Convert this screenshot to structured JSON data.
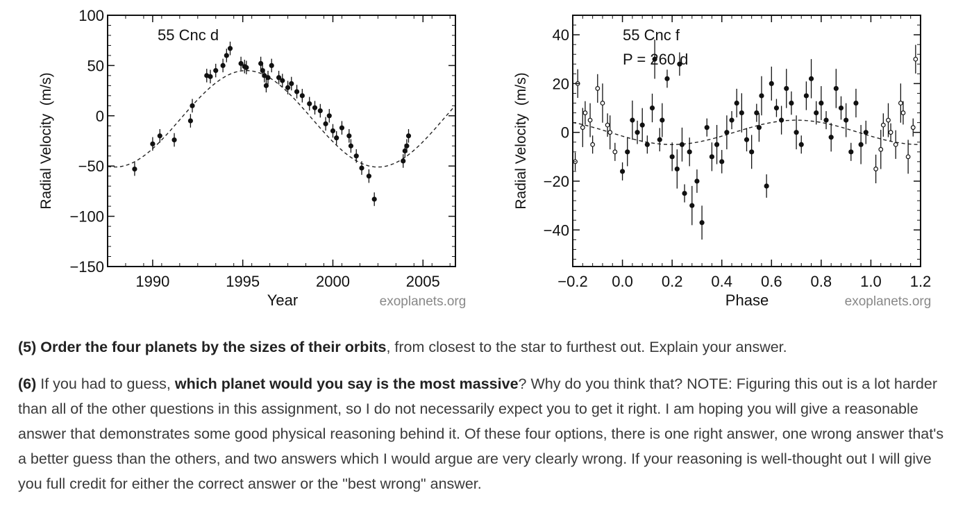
{
  "chart_data": [
    {
      "type": "scatter",
      "title": "55 Cnc d",
      "xlabel": "Year",
      "ylabel": "Radial Velocity  (m/s)",
      "xlim": [
        1987.5,
        2006.8
      ],
      "ylim": [
        -150,
        100
      ],
      "xticks": [
        1990,
        1995,
        2000,
        2005
      ],
      "xtick_labels": [
        "1990",
        "1995",
        "2000",
        "2005"
      ],
      "yticks": [
        100,
        50,
        0,
        -50,
        -100,
        -150
      ],
      "ytick_labels": [
        "100",
        "50",
        "0",
        "−50",
        "−100",
        "−150"
      ],
      "credit": "exoplanets.org",
      "model": {
        "type": "sinusoid",
        "amplitude": 48,
        "offset": -3,
        "period_years": 14.6,
        "peak_year": 1995.2,
        "style": "dashed"
      },
      "series": [
        {
          "name": "observations",
          "x": [
            1989.0,
            1990.0,
            1990.4,
            1991.2,
            1992.1,
            1992.2,
            1993.0,
            1993.2,
            1993.5,
            1993.9,
            1994.1,
            1994.3,
            1994.9,
            1995.1,
            1995.2,
            1996.0,
            1996.1,
            1996.2,
            1996.3,
            1996.4,
            1996.6,
            1997.0,
            1997.2,
            1997.5,
            1997.7,
            1998.0,
            1998.3,
            1998.7,
            1999.0,
            1999.3,
            1999.6,
            1999.8,
            2000.0,
            2000.2,
            2000.5,
            2000.9,
            2001.0,
            2001.3,
            2001.6,
            2002.0,
            2002.3,
            2003.9,
            2004.0,
            2004.1,
            2004.2
          ],
          "y": [
            -53,
            -28,
            -20,
            -24,
            -5,
            10,
            40,
            39,
            45,
            50,
            60,
            67,
            52,
            49,
            48,
            52,
            45,
            40,
            30,
            38,
            50,
            38,
            35,
            28,
            32,
            24,
            20,
            12,
            8,
            5,
            -8,
            0,
            -15,
            -22,
            -12,
            -20,
            -30,
            -40,
            -52,
            -60,
            -83,
            -45,
            -35,
            -30,
            -20
          ]
        }
      ]
    },
    {
      "type": "scatter",
      "title": "55 Cnc f",
      "subtitle": "P = 260 d",
      "xlabel": "Phase",
      "ylabel": "Radial Velocity  (m/s)",
      "xlim": [
        -0.2,
        1.2
      ],
      "ylim": [
        -55,
        48
      ],
      "xticks": [
        -0.2,
        0.0,
        0.2,
        0.4,
        0.6,
        0.8,
        1.0,
        1.2
      ],
      "xtick_labels": [
        "−0.2",
        "0.0",
        "0.2",
        "0.4",
        "0.6",
        "0.8",
        "1.0",
        "1.2"
      ],
      "yticks": [
        40,
        20,
        0,
        -20,
        -40
      ],
      "ytick_labels": [
        "40",
        "20",
        "0",
        "−20",
        "−40"
      ],
      "credit": "exoplanets.org",
      "model": {
        "type": "sinusoid",
        "amplitude": 5,
        "offset": 0,
        "period_phase": 1.0,
        "peak_phase": 0.7,
        "style": "dashed"
      },
      "series": [
        {
          "name": "phase-wrapped (open)",
          "marker": "open-circle",
          "x": [
            -0.19,
            -0.18,
            -0.16,
            -0.15,
            -0.13,
            -0.12,
            -0.1,
            -0.08,
            -0.06,
            -0.05,
            -0.03,
            1.02,
            1.04,
            1.05,
            1.07,
            1.08,
            1.1,
            1.12,
            1.13,
            1.15,
            1.17,
            1.18
          ],
          "y": [
            -12,
            20,
            2,
            8,
            5,
            -5,
            18,
            12,
            3,
            0,
            -8,
            -15,
            -7,
            3,
            5,
            0,
            -5,
            12,
            8,
            -10,
            2,
            30
          ]
        },
        {
          "name": "observations",
          "marker": "filled-circle",
          "x": [
            0.0,
            0.02,
            0.04,
            0.06,
            0.08,
            0.1,
            0.12,
            0.13,
            0.15,
            0.16,
            0.18,
            0.2,
            0.22,
            0.23,
            0.24,
            0.25,
            0.27,
            0.28,
            0.3,
            0.32,
            0.34,
            0.36,
            0.38,
            0.4,
            0.42,
            0.44,
            0.46,
            0.48,
            0.5,
            0.52,
            0.54,
            0.55,
            0.56,
            0.58,
            0.6,
            0.62,
            0.64,
            0.66,
            0.68,
            0.7,
            0.72,
            0.74,
            0.76,
            0.78,
            0.8,
            0.82,
            0.84,
            0.86,
            0.88,
            0.9,
            0.92,
            0.94,
            0.96,
            0.98
          ],
          "y": [
            -16,
            -8,
            5,
            0,
            3,
            -5,
            10,
            30,
            -3,
            5,
            22,
            -10,
            -15,
            28,
            -5,
            -25,
            -8,
            -30,
            -20,
            -37,
            2,
            -10,
            -5,
            -12,
            0,
            5,
            12,
            8,
            -3,
            -8,
            8,
            2,
            15,
            -22,
            20,
            10,
            5,
            18,
            12,
            0,
            -5,
            15,
            22,
            8,
            12,
            5,
            -2,
            18,
            10,
            5,
            -8,
            12,
            -5,
            0
          ]
        }
      ]
    }
  ],
  "questions": {
    "q5": {
      "num": "(5)",
      "bold": "Order the four planets by the sizes of their orbits",
      "rest": ", from closest to the star to furthest out.  Explain your answer."
    },
    "q6": {
      "num": "(6)",
      "pre": " If you had to guess, ",
      "bold": "which planet would you say is the most massive",
      "rest": "?  Why do you think that?  NOTE:  Figuring this out is a lot harder than all of the other questions in this assignment, so I do not necessarily expect you to get it right.  I am hoping you will give a reasonable answer that demonstrates some good physical reasoning behind it.  Of these four options, there is one right answer, one wrong answer that's a better guess than the others, and two answers which I would argue are very clearly wrong.  If your reasoning is well-thought out I will give you full credit for either the correct answer or the \"best wrong\" answer."
    }
  }
}
